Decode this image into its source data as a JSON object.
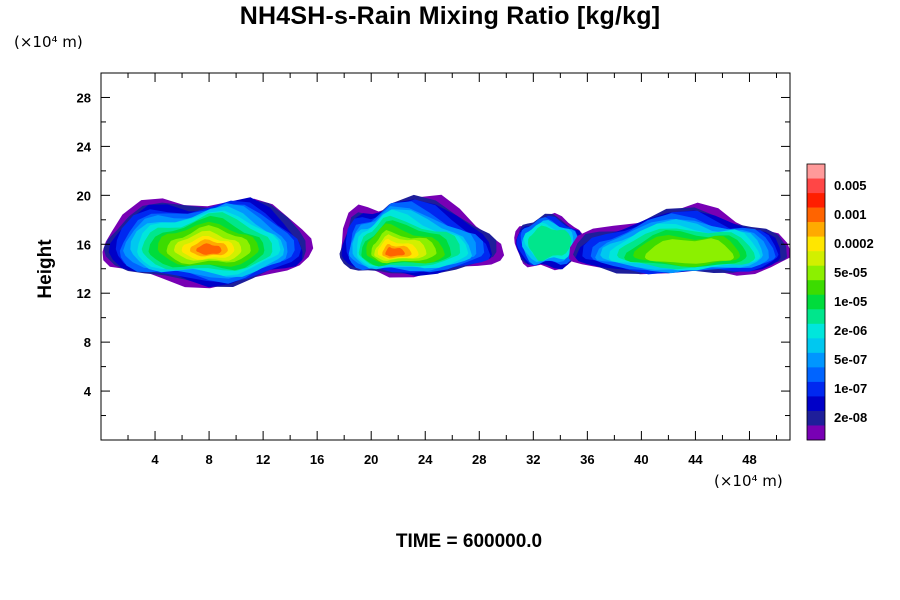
{
  "chart_data": {
    "type": "heatmap",
    "title": "NH4SH-s-Rain Mixing Ratio [kg/kg]",
    "xlabel": "",
    "ylabel": "Height",
    "x_unit_label": "(×10⁴ m)",
    "y_unit_label": "(×10⁴ m)",
    "xlim": [
      0,
      51
    ],
    "ylim": [
      0,
      30
    ],
    "x_ticks": [
      4,
      8,
      12,
      16,
      20,
      24,
      28,
      32,
      36,
      40,
      44,
      48
    ],
    "y_ticks": [
      4,
      8,
      12,
      16,
      20,
      24,
      28
    ],
    "grid": false,
    "colorbar": {
      "labels": [
        "0.005",
        "0.001",
        "0.0002",
        "5e-05",
        "1e-05",
        "2e-06",
        "5e-07",
        "1e-07",
        "2e-08"
      ],
      "colors_top_to_bottom": [
        "#ff9a9a",
        "#ff4646",
        "#ff1e00",
        "#ff6400",
        "#ffaa00",
        "#ffe600",
        "#d2f000",
        "#8cf000",
        "#3cdc00",
        "#00dc3c",
        "#00e68c",
        "#00e6dc",
        "#00c8f0",
        "#0096ff",
        "#0064ff",
        "#0028f0",
        "#0000c8",
        "#1e1e9a",
        "#7800b4"
      ],
      "placement": "right"
    },
    "cloud_bands": [
      {
        "x_start": 0,
        "x_end": 15.6,
        "y_bottom": 12.8,
        "y_top": 19.8,
        "core_x": 8,
        "core_y": 15.5
      },
      {
        "x_start": 17.6,
        "x_end": 29.7,
        "y_bottom": 13.6,
        "y_top": 19.6,
        "core_x": 21.5,
        "core_y": 15.2
      },
      {
        "x_start": 30.6,
        "x_end": 35.8,
        "y_bottom": 14.0,
        "y_top": 18.2,
        "core_x": 33,
        "core_y": 16.2
      },
      {
        "x_start": 34.5,
        "x_end": 51,
        "y_bottom": 13.6,
        "y_top": 18.6,
        "core_x": 44,
        "core_y": 15.0
      }
    ]
  },
  "footer": {
    "time_label": "TIME = 600000.0"
  }
}
